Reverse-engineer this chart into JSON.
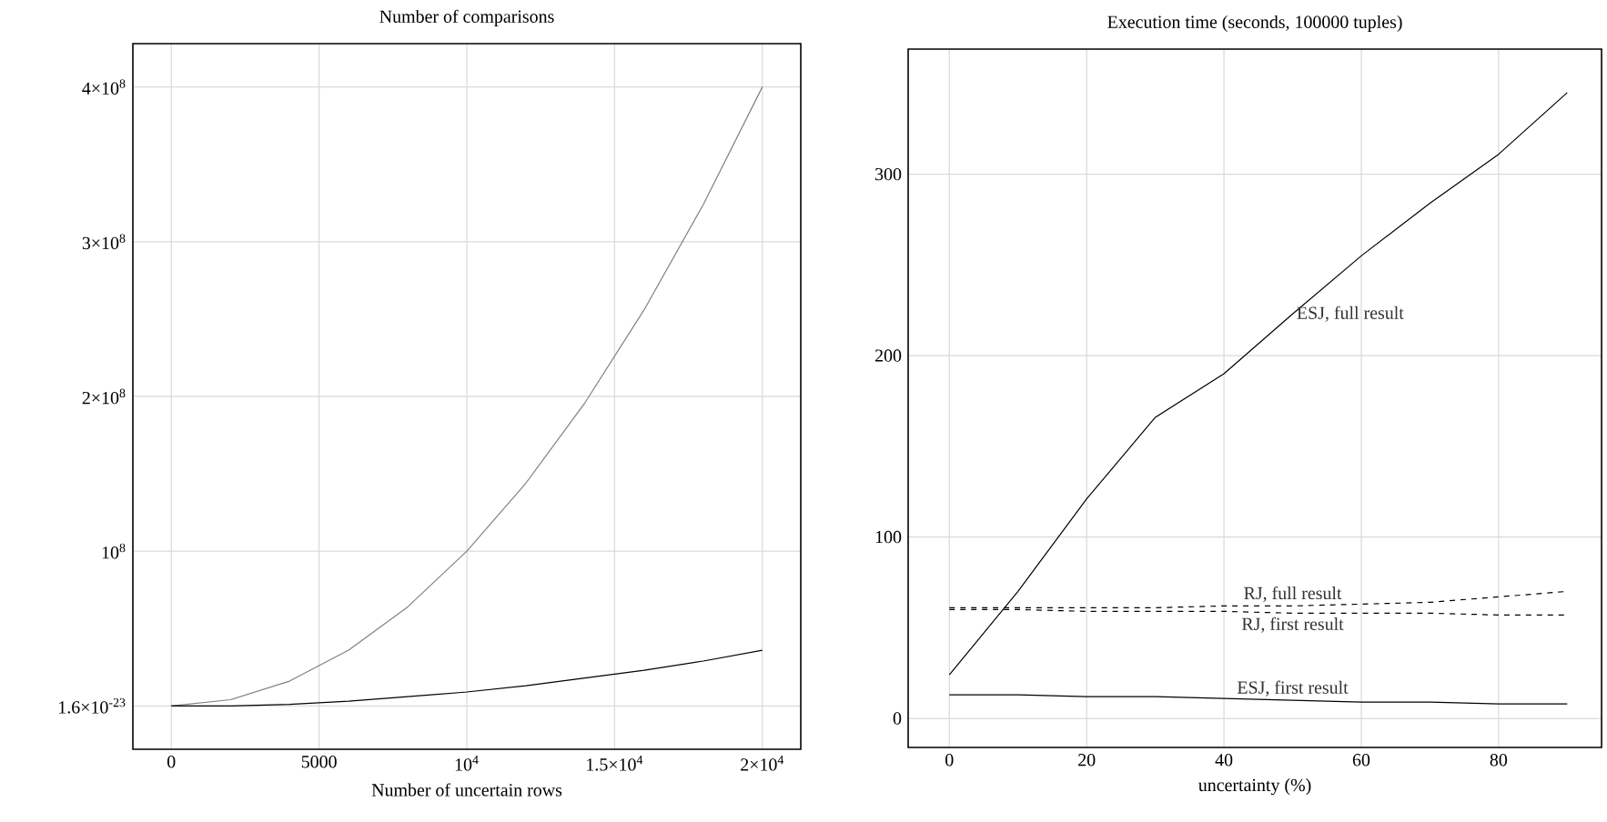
{
  "chart_data": [
    {
      "type": "line",
      "title": "Number of comparisons",
      "xlabel": "Number of uncertain rows",
      "grid": true,
      "x": [
        0,
        2000,
        4000,
        6000,
        8000,
        10000,
        12000,
        14000,
        16000,
        18000,
        20000
      ],
      "series": [
        {
          "color": "#808080",
          "values": [
            0,
            4000000,
            16000000,
            36000000,
            64000000,
            100000000,
            144000000,
            196000000,
            256000000,
            324000000,
            400000000
          ]
        },
        {
          "color": "#000000",
          "values": [
            0,
            0,
            1000000,
            3000000,
            6000000,
            9000000,
            13000000,
            18000000,
            23000000,
            29000000,
            36000000
          ]
        }
      ],
      "xlim": [
        -1300,
        21300
      ],
      "ylim": [
        -28000000,
        428000000
      ],
      "xticks": [
        0,
        5000,
        {
          "value": 10000,
          "label": "10$^{4}$"
        },
        {
          "value": 15000,
          "label": "1.5×10$^{4}$"
        },
        {
          "value": 20000,
          "label": "2×10$^{4}$"
        }
      ],
      "yticks": [
        {
          "value": 0,
          "label": "1.6×10$^{-23}$"
        },
        {
          "value": 100000000,
          "label": "10$^{8}$"
        },
        {
          "value": 200000000,
          "label": "2×10$^{8}$"
        },
        {
          "value": 300000000,
          "label": "3×10$^{8}$"
        },
        {
          "value": 400000000,
          "label": "4×10$^{8}$"
        }
      ]
    },
    {
      "type": "line",
      "title": "Execution time (seconds, 100000 tuples)",
      "xlabel": "uncertainty (%)",
      "grid": true,
      "x": [
        0,
        10,
        20,
        30,
        40,
        50,
        60,
        70,
        80,
        90
      ],
      "series": [
        {
          "name": "ESJ, full result",
          "color": "#000000",
          "line_style": "solid",
          "values": [
            24,
            70,
            121,
            166,
            190,
            223,
            255,
            284,
            311,
            345
          ]
        },
        {
          "name": "RJ, full result",
          "color": "#000000",
          "line_style": "dashed",
          "values": [
            61,
            61,
            61,
            61,
            62,
            62,
            63,
            64,
            67,
            70
          ]
        },
        {
          "name": "RJ, first result",
          "color": "#000000",
          "line_style": "dashed",
          "values": [
            60,
            60,
            59,
            59,
            59,
            58,
            58,
            58,
            57,
            57
          ]
        },
        {
          "name": "ESJ, first result",
          "color": "#000000",
          "line_style": "solid",
          "values": [
            13,
            13,
            12,
            12,
            11,
            10,
            9,
            9,
            8,
            8
          ]
        }
      ],
      "xlim": [
        -6,
        95
      ],
      "ylim": [
        -16,
        369
      ],
      "xticks": [
        0,
        20,
        40,
        60,
        80
      ],
      "yticks": [
        0,
        100,
        200,
        300
      ]
    }
  ]
}
